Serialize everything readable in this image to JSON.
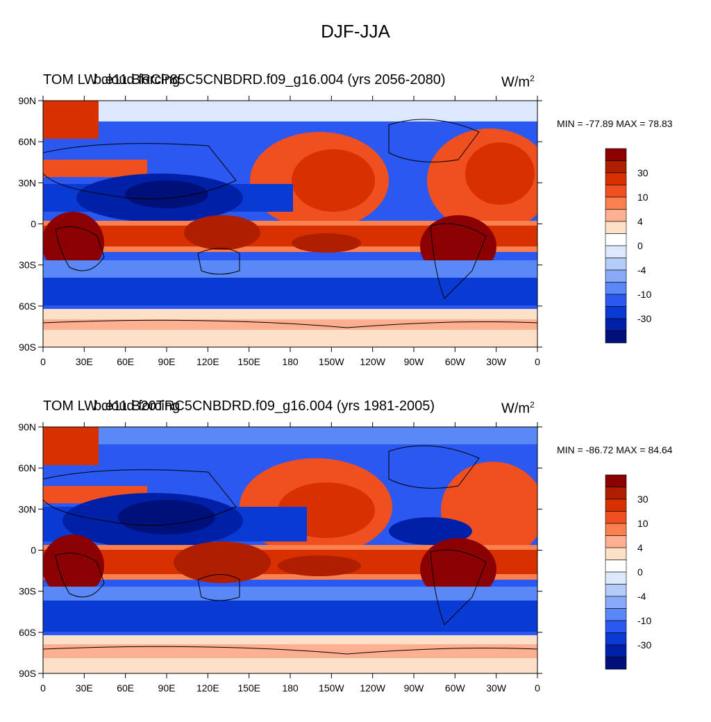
{
  "figure": {
    "title": "DJF-JJA"
  },
  "chart_data": [
    {
      "type": "heatmap",
      "title_left": "TOM LW cloud forcing",
      "title_center": "b.e11.BRCP85C5CNBDRD.f09_g16.004 (yrs 2056-2080)",
      "units_base": "W/m",
      "units_sup": "2",
      "min_max": "MIN = -77.89 MAX =  78.83",
      "x_tick_labels": [
        "0",
        "30E",
        "60E",
        "90E",
        "120E",
        "150E",
        "180",
        "150W",
        "120W",
        "90W",
        "60W",
        "30W",
        "0"
      ],
      "y_tick_labels": [
        "90N",
        "60N",
        "30N",
        "0",
        "30S",
        "60S",
        "90S"
      ],
      "xlim": [
        0,
        360
      ],
      "ylim": [
        -90,
        90
      ],
      "colorbar_labels": [
        "30",
        "10",
        "4",
        "0",
        "-4",
        "-10",
        "-30"
      ],
      "colorbar_colors": [
        "#8b0000",
        "#b01e00",
        "#d83000",
        "#f05020",
        "#fa8050",
        "#fcb090",
        "#fde0c8",
        "#ffffff",
        "#dce9fc",
        "#b4ccf8",
        "#88aaf8",
        "#5a88f6",
        "#2a58f0",
        "#0a3ad4",
        "#0020a8",
        "#00107a"
      ]
    },
    {
      "type": "heatmap",
      "title_left": "TOM LW cloud forcing",
      "title_center": "b.e11.B20TRC5CNBDRD.f09_g16.004 (yrs 1981-2005)",
      "units_base": "W/m",
      "units_sup": "2",
      "min_max": "MIN = -86.72 MAX =  84.64",
      "x_tick_labels": [
        "0",
        "30E",
        "60E",
        "90E",
        "120E",
        "150E",
        "180",
        "150W",
        "120W",
        "90W",
        "60W",
        "30W",
        "0"
      ],
      "y_tick_labels": [
        "90N",
        "60N",
        "30N",
        "0",
        "30S",
        "60S",
        "90S"
      ],
      "xlim": [
        0,
        360
      ],
      "ylim": [
        -90,
        90
      ],
      "colorbar_labels": [
        "30",
        "10",
        "4",
        "0",
        "-4",
        "-10",
        "-30"
      ],
      "colorbar_colors": [
        "#8b0000",
        "#b01e00",
        "#d83000",
        "#f05020",
        "#fa8050",
        "#fcb090",
        "#fde0c8",
        "#ffffff",
        "#dce9fc",
        "#b4ccf8",
        "#88aaf8",
        "#5a88f6",
        "#2a58f0",
        "#0a3ad4",
        "#0020a8",
        "#00107a"
      ]
    }
  ]
}
